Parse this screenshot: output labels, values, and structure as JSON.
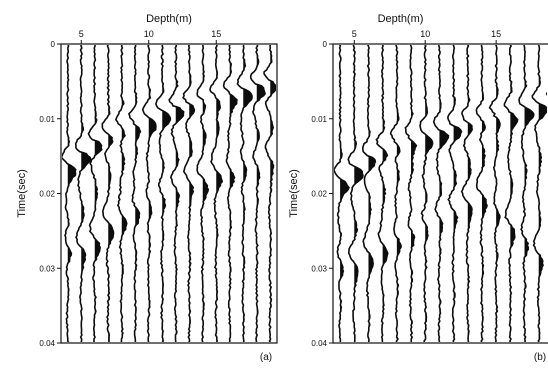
{
  "chart_data": [
    {
      "type": "seismic-wiggle",
      "panel_label": "(a)",
      "xlabel": "Depth(m)",
      "ylabel": "Time(sec)",
      "xlim": [
        3.5,
        19.5
      ],
      "ylim": [
        0,
        0.04
      ],
      "x_ticks": [
        5,
        10,
        15
      ],
      "y_ticks": [
        0,
        0.01,
        0.02,
        0.03,
        0.04
      ],
      "x_tick_labels": [
        "5",
        "10",
        "15"
      ],
      "y_tick_labels": [
        "0",
        "0.01",
        "0.02",
        "0.03",
        "0.04"
      ],
      "trace_depths": [
        4,
        5,
        6,
        7,
        8,
        9,
        10,
        11,
        12,
        13,
        14,
        15,
        16,
        17,
        18,
        19
      ],
      "first_arrival_time": [
        0.016,
        0.0145,
        0.013,
        0.012,
        0.011,
        0.0105,
        0.0098,
        0.009,
        0.0085,
        0.008,
        0.0075,
        0.007,
        0.0065,
        0.006,
        0.0055,
        0.005
      ],
      "late_event_time": [
        0.027,
        0.027,
        0.026,
        0.024,
        0.023,
        0.022,
        0.021,
        0.02,
        0.019,
        0.018,
        0.018,
        0.017,
        0.017,
        0.016,
        0.016,
        0.015
      ]
    },
    {
      "type": "seismic-wiggle",
      "panel_label": "(b)",
      "xlabel": "Depth(m)",
      "ylabel": "Time(sec)",
      "xlim": [
        3.5,
        19.5
      ],
      "ylim": [
        0,
        0.04
      ],
      "x_ticks": [
        5,
        10,
        15
      ],
      "y_ticks": [
        0,
        0.01,
        0.02,
        0.03,
        0.04
      ],
      "x_tick_labels": [
        "5",
        "10",
        "15"
      ],
      "y_tick_labels": [
        "0",
        "0.01",
        "0.02",
        "0.03",
        "0.04"
      ],
      "trace_depths": [
        4,
        5,
        6,
        7,
        8,
        9,
        10,
        11,
        12,
        13,
        14,
        15,
        16,
        17,
        18,
        19
      ],
      "first_arrival_time": [
        0.018,
        0.0165,
        0.015,
        0.014,
        0.013,
        0.0125,
        0.012,
        0.0115,
        0.011,
        0.0105,
        0.01,
        0.0095,
        0.009,
        0.0085,
        0.008,
        0.0075
      ],
      "late_event_time": [
        0.029,
        0.029,
        0.028,
        0.027,
        0.026,
        0.025,
        0.024,
        0.023,
        0.022,
        0.021,
        0.02,
        0.022,
        0.024,
        0.026,
        0.028,
        0.03
      ]
    }
  ]
}
